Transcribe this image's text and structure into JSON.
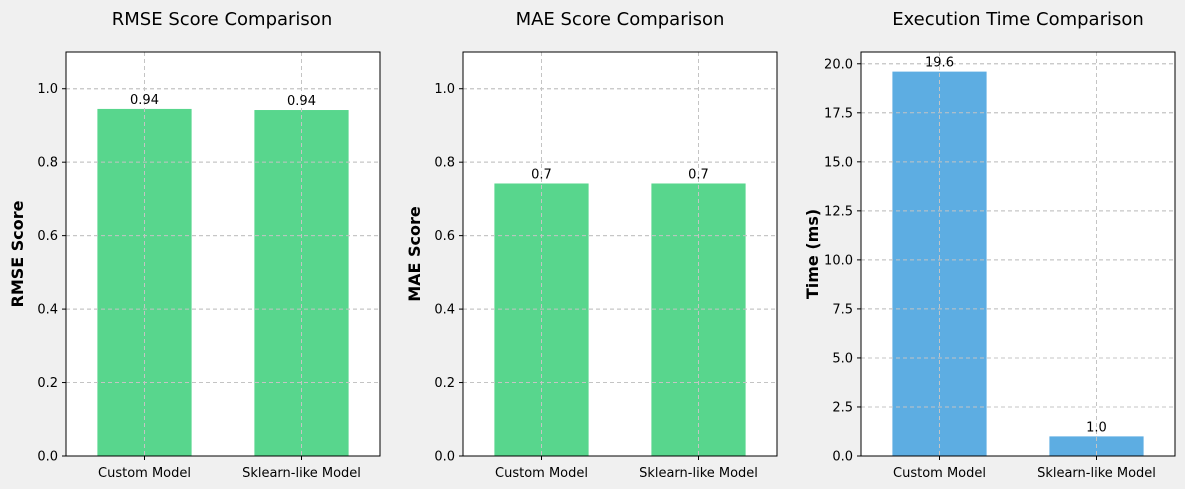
{
  "colors": {
    "accuracy_bar": "#58d68d",
    "time_bar": "#5dade2"
  },
  "chart_data": [
    {
      "type": "bar",
      "title": "RMSE Score Comparison",
      "xlabel": "",
      "ylabel": "RMSE Score",
      "categories": [
        "Custom Model",
        "Sklearn-like Model"
      ],
      "values": [
        0.945,
        0.942
      ],
      "data_labels": [
        "0.94",
        "0.94"
      ],
      "ylim": [
        0,
        1.1
      ],
      "yticks": [
        0.0,
        0.2,
        0.4,
        0.6,
        0.8,
        1.0
      ],
      "ytick_labels": [
        "0.0",
        "0.2",
        "0.4",
        "0.6",
        "0.8",
        "1.0"
      ],
      "grid": true,
      "color_key": "accuracy_bar"
    },
    {
      "type": "bar",
      "title": "MAE Score Comparison",
      "xlabel": "",
      "ylabel": "MAE Score",
      "categories": [
        "Custom Model",
        "Sklearn-like Model"
      ],
      "values": [
        0.742,
        0.742
      ],
      "data_labels": [
        "0.7",
        "0.7"
      ],
      "ylim": [
        0,
        1.1
      ],
      "yticks": [
        0.0,
        0.2,
        0.4,
        0.6,
        0.8,
        1.0
      ],
      "ytick_labels": [
        "0.0",
        "0.2",
        "0.4",
        "0.6",
        "0.8",
        "1.0"
      ],
      "grid": true,
      "color_key": "accuracy_bar"
    },
    {
      "type": "bar",
      "title": "Execution Time Comparison",
      "xlabel": "",
      "ylabel": "Time (ms)",
      "categories": [
        "Custom Model",
        "Sklearn-like Model"
      ],
      "values": [
        19.6,
        1.0
      ],
      "data_labels": [
        "19.6",
        "1.0"
      ],
      "ylim": [
        0,
        20.6
      ],
      "yticks": [
        0.0,
        2.5,
        5.0,
        7.5,
        10.0,
        12.5,
        15.0,
        17.5,
        20.0
      ],
      "ytick_labels": [
        "0.0",
        "2.5",
        "5.0",
        "7.5",
        "10.0",
        "12.5",
        "15.0",
        "17.5",
        "20.0"
      ],
      "grid": true,
      "color_key": "time_bar"
    }
  ]
}
